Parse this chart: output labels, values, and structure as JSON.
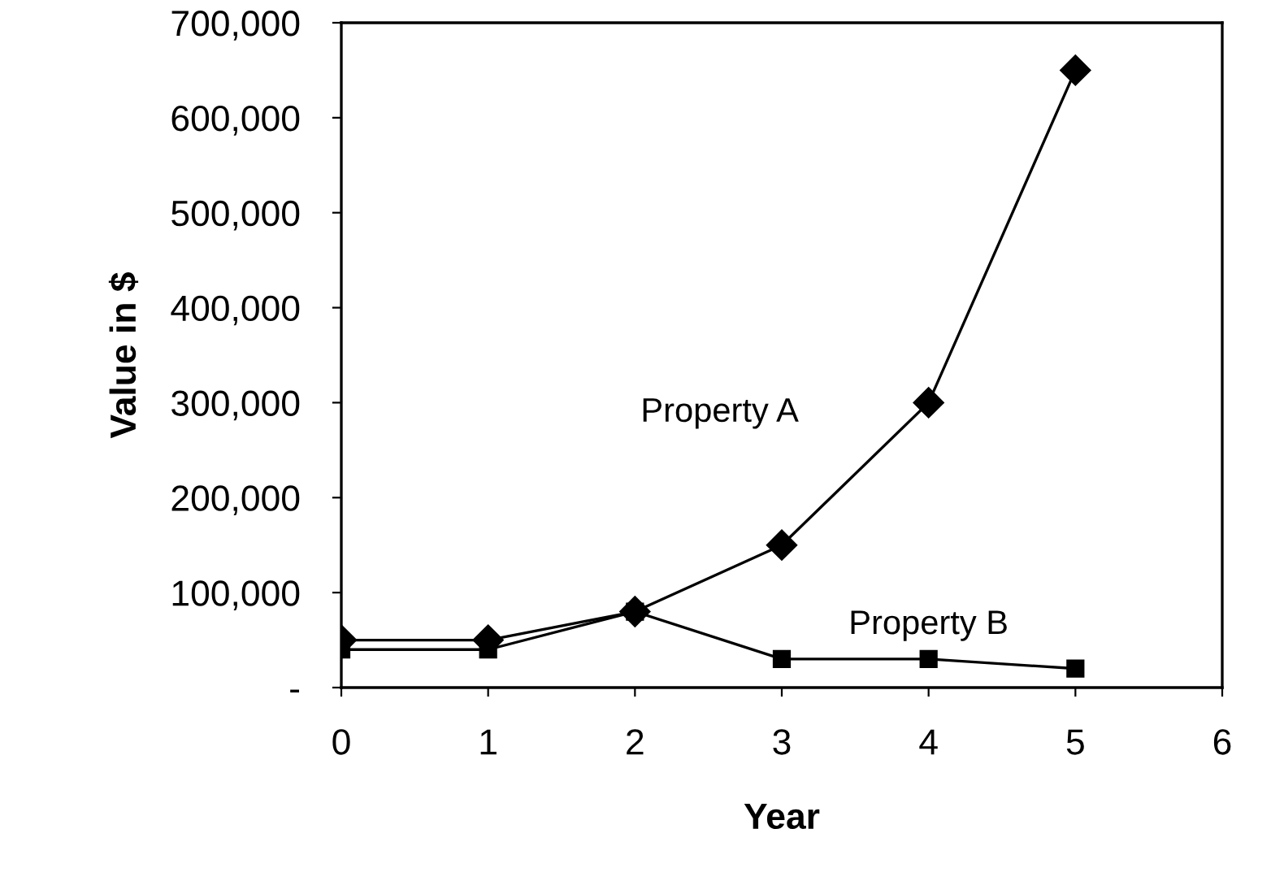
{
  "chart_data": {
    "type": "line",
    "xlabel": "Year",
    "ylabel": "Value in $",
    "x": [
      0,
      1,
      2,
      3,
      4,
      5
    ],
    "series": [
      {
        "name": "Property A",
        "color": "#000000",
        "marker": "diamond",
        "values": [
          50000,
          50000,
          80000,
          150000,
          300000,
          650000
        ]
      },
      {
        "name": "Property B",
        "color": "#000000",
        "marker": "square",
        "values": [
          40000,
          40000,
          80000,
          30000,
          30000,
          20000
        ]
      }
    ],
    "xlim": [
      0,
      6
    ],
    "xticks": [
      0,
      1,
      2,
      3,
      4,
      5,
      6
    ],
    "ylim": [
      0,
      700000
    ],
    "yticks": [
      {
        "value": 0,
        "label": "-"
      },
      {
        "value": 100000,
        "label": "100,000"
      },
      {
        "value": 200000,
        "label": "200,000"
      },
      {
        "value": 300000,
        "label": "300,000"
      },
      {
        "value": 400000,
        "label": "400,000"
      },
      {
        "value": 500000,
        "label": "500,000"
      },
      {
        "value": 600000,
        "label": "600,000"
      },
      {
        "value": 700000,
        "label": "700,000"
      }
    ],
    "grid": false,
    "legend": false,
    "line_style": "solid"
  }
}
